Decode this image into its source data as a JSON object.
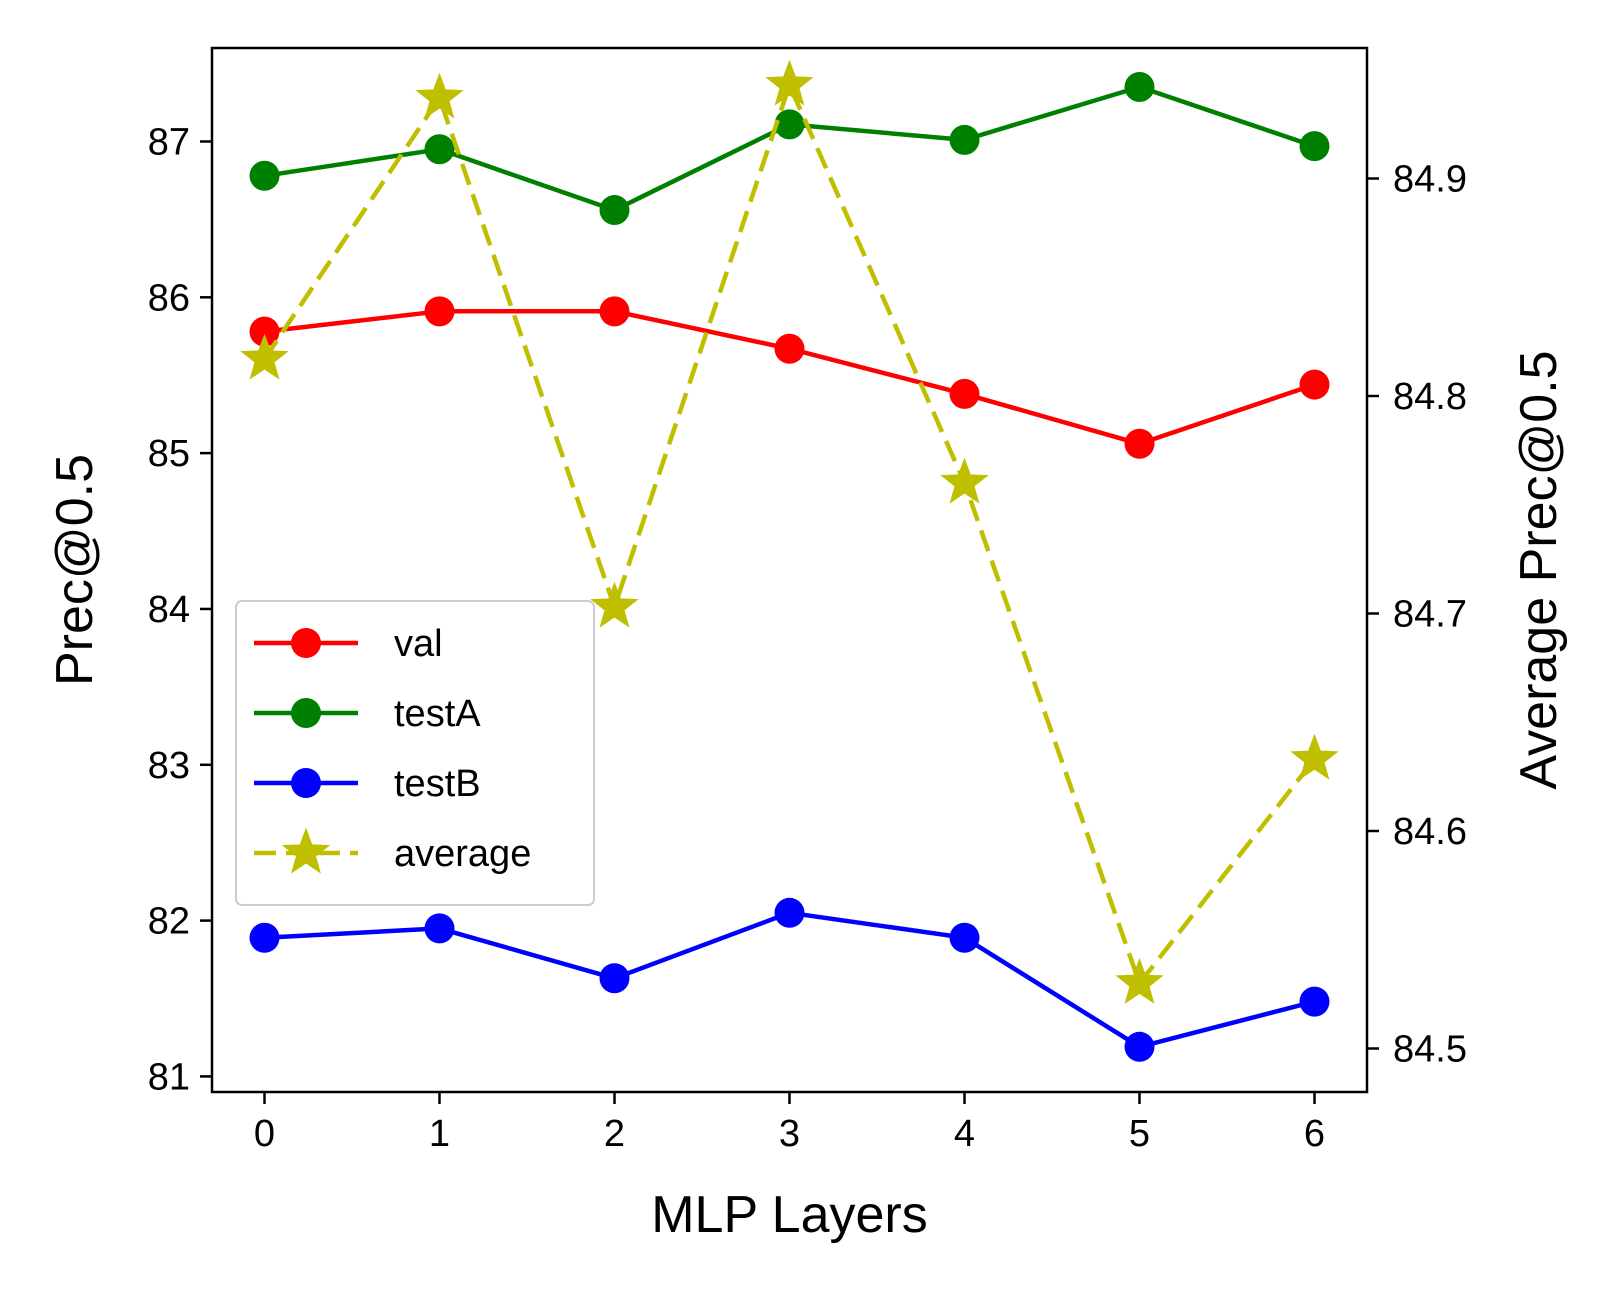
{
  "chart_data": {
    "type": "line",
    "xlabel": "MLP Layers",
    "ylabel": "Prec@0.5",
    "y2label": "Average Prec@0.5",
    "x": [
      0,
      1,
      2,
      3,
      4,
      5,
      6
    ],
    "xticks": [
      "0",
      "1",
      "2",
      "3",
      "4",
      "5",
      "6"
    ],
    "ylim": [
      80.9,
      87.6
    ],
    "yticks": [
      81,
      82,
      83,
      84,
      85,
      86,
      87
    ],
    "ytick_labels": [
      "81",
      "82",
      "83",
      "84",
      "85",
      "86",
      "87"
    ],
    "y2lim": [
      84.48,
      84.96
    ],
    "y2ticks": [
      84.5,
      84.6,
      84.7,
      84.8,
      84.9
    ],
    "y2tick_labels": [
      "84.5",
      "84.6",
      "84.7",
      "84.8",
      "84.9"
    ],
    "legend_position": "center-left",
    "series": [
      {
        "name": "val",
        "axis": "left",
        "color": "#ff0000",
        "marker": "circle",
        "linestyle": "solid",
        "values": [
          85.78,
          85.91,
          85.91,
          85.67,
          85.38,
          85.06,
          85.44
        ]
      },
      {
        "name": "testA",
        "axis": "left",
        "color": "#008000",
        "marker": "circle",
        "linestyle": "solid",
        "values": [
          86.78,
          86.95,
          86.56,
          87.11,
          87.01,
          87.35,
          86.97
        ]
      },
      {
        "name": "testB",
        "axis": "left",
        "color": "#0000ff",
        "marker": "circle",
        "linestyle": "solid",
        "values": [
          81.89,
          81.95,
          81.63,
          82.05,
          81.89,
          81.19,
          81.48
        ]
      },
      {
        "name": "average",
        "axis": "right",
        "color": "#bfbf00",
        "marker": "star",
        "linestyle": "dashed",
        "values": [
          84.817,
          84.937,
          84.703,
          84.943,
          84.76,
          84.53,
          84.633
        ]
      }
    ]
  }
}
